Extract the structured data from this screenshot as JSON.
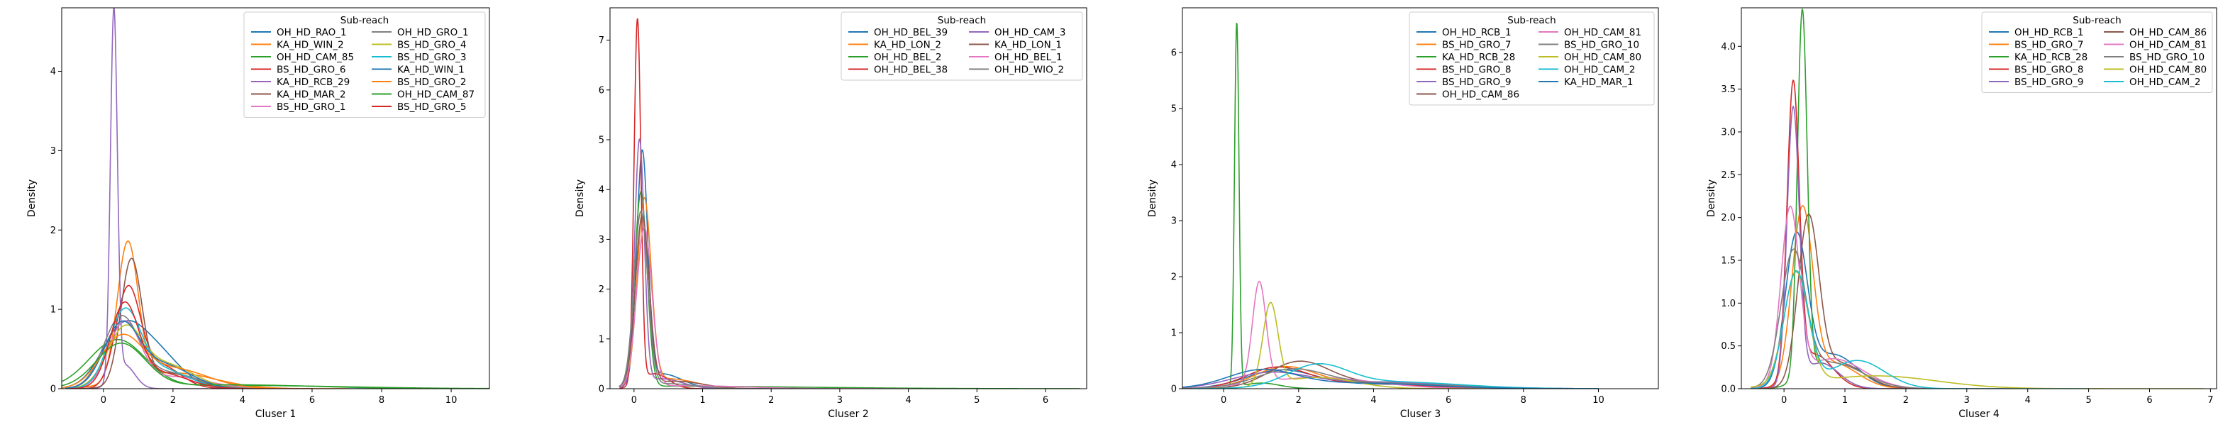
{
  "chart_data": [
    {
      "type": "line",
      "subtype": "kde",
      "xlabel": "Cluser 1",
      "ylabel": "Density",
      "xlim": [
        -1.2,
        11.1
      ],
      "ylim": [
        0,
        4.8
      ],
      "xticks": [
        0,
        2,
        4,
        6,
        8,
        10
      ],
      "yticks": [
        0,
        1,
        2,
        3,
        4
      ],
      "legend": {
        "title": "Sub-reach",
        "position": "top-right",
        "ncol": 2
      },
      "series": [
        {
          "name": "OH_HD_RAO_1",
          "color": "#1f77b4",
          "peak_x": 0.5,
          "peak_y": 0.66,
          "spread": 0.6,
          "tail_x": 1.5,
          "tail_y": 0.45,
          "tail_spread": 0.7,
          "x_max": 8.0
        },
        {
          "name": "KA_HD_WIN_2",
          "color": "#ff7f0e",
          "peak_x": 0.7,
          "peak_y": 1.75,
          "spread": 0.3,
          "tail_x": 2.0,
          "tail_y": 0.2,
          "tail_spread": 1.2,
          "x_max": 7.0
        },
        {
          "name": "OH_HD_CAM_85",
          "color": "#2ca02c",
          "peak_x": 0.4,
          "peak_y": 0.6,
          "spread": 0.8,
          "tail_x": 4.0,
          "tail_y": 0.04,
          "tail_spread": 3.0,
          "x_max": 11.0
        },
        {
          "name": "BS_HD_GRO_6",
          "color": "#d62728",
          "peak_x": 0.7,
          "peak_y": 1.2,
          "spread": 0.35,
          "tail_x": 1.6,
          "tail_y": 0.3,
          "tail_spread": 0.6,
          "x_max": 6.0
        },
        {
          "name": "KA_HD_RCB_29",
          "color": "#9467bd",
          "peak_x": 0.3,
          "peak_y": 4.62,
          "spread": 0.1,
          "tail_x": 0.6,
          "tail_y": 0.3,
          "tail_spread": 0.3,
          "x_max": 3.0
        },
        {
          "name": "KA_HD_MAR_2",
          "color": "#8c564b",
          "peak_x": 0.8,
          "peak_y": 1.55,
          "spread": 0.3,
          "tail_x": 1.8,
          "tail_y": 0.2,
          "tail_spread": 0.8,
          "x_max": 6.0
        },
        {
          "name": "BS_HD_GRO_1",
          "color": "#e377c2",
          "peak_x": 0.6,
          "peak_y": 0.8,
          "spread": 0.45,
          "tail_x": 2.0,
          "tail_y": 0.15,
          "tail_spread": 1.0,
          "x_max": 7.0
        },
        {
          "name": "OH_HD_GRO_1",
          "color": "#7f7f7f",
          "peak_x": 0.5,
          "peak_y": 0.85,
          "spread": 0.5,
          "tail_x": 1.8,
          "tail_y": 0.2,
          "tail_spread": 0.9,
          "x_max": 6.0
        },
        {
          "name": "BS_HD_GRO_4",
          "color": "#bcbd22",
          "peak_x": 0.6,
          "peak_y": 0.7,
          "spread": 0.5,
          "tail_x": 1.8,
          "tail_y": 0.3,
          "tail_spread": 0.8,
          "x_max": 6.0
        },
        {
          "name": "BS_HD_GRO_3",
          "color": "#17becf",
          "peak_x": 0.6,
          "peak_y": 0.9,
          "spread": 0.45,
          "tail_x": 1.6,
          "tail_y": 0.25,
          "tail_spread": 0.8,
          "x_max": 6.0
        },
        {
          "name": "KA_HD_WIN_1",
          "color": "#1f77b4",
          "peak_x": 0.5,
          "peak_y": 0.75,
          "spread": 0.5,
          "tail_x": 1.7,
          "tail_y": 0.3,
          "tail_spread": 0.8,
          "x_max": 6.0
        },
        {
          "name": "BS_HD_GRO_2",
          "color": "#ff7f0e",
          "peak_x": 0.5,
          "peak_y": 0.6,
          "spread": 0.6,
          "tail_x": 2.0,
          "tail_y": 0.25,
          "tail_spread": 1.0,
          "x_max": 7.0
        },
        {
          "name": "OH_HD_CAM_87",
          "color": "#2ca02c",
          "peak_x": 0.5,
          "peak_y": 0.55,
          "spread": 0.7,
          "tail_x": 3.5,
          "tail_y": 0.05,
          "tail_spread": 2.5,
          "x_max": 10.0
        },
        {
          "name": "BS_HD_GRO_5",
          "color": "#d62728",
          "peak_x": 0.6,
          "peak_y": 1.0,
          "spread": 0.4,
          "tail_x": 1.6,
          "tail_y": 0.2,
          "tail_spread": 0.8,
          "x_max": 6.0
        }
      ]
    },
    {
      "type": "line",
      "subtype": "kde",
      "xlabel": "Cluser 2",
      "ylabel": "Density",
      "xlim": [
        -0.35,
        6.6
      ],
      "ylim": [
        0,
        7.65
      ],
      "xticks": [
        0,
        1,
        2,
        3,
        4,
        5,
        6
      ],
      "yticks": [
        0,
        1,
        2,
        3,
        4,
        5,
        6,
        7
      ],
      "legend": {
        "title": "Sub-reach",
        "position": "top-right",
        "ncol": 2
      },
      "series": [
        {
          "name": "OH_HD_BEL_39",
          "color": "#1f77b4",
          "peak_x": 0.12,
          "peak_y": 4.6,
          "spread": 0.08,
          "tail_x": 0.4,
          "tail_y": 0.3,
          "tail_spread": 0.3,
          "x_max": 3.0
        },
        {
          "name": "KA_HD_LON_2",
          "color": "#ff7f0e",
          "peak_x": 0.15,
          "peak_y": 3.7,
          "spread": 0.1,
          "tail_x": 0.5,
          "tail_y": 0.2,
          "tail_spread": 0.4,
          "x_max": 3.5
        },
        {
          "name": "OH_HD_BEL_2",
          "color": "#2ca02c",
          "peak_x": 0.1,
          "peak_y": 3.9,
          "spread": 0.09,
          "tail_x": 0.5,
          "tail_y": 0.05,
          "tail_spread": 2.0,
          "x_max": 6.3
        },
        {
          "name": "OH_HD_BEL_38",
          "color": "#d62728",
          "peak_x": 0.05,
          "peak_y": 7.3,
          "spread": 0.05,
          "tail_x": 0.3,
          "tail_y": 0.3,
          "tail_spread": 0.2,
          "x_max": 2.5
        },
        {
          "name": "OH_HD_CAM_3",
          "color": "#9467bd",
          "peak_x": 0.08,
          "peak_y": 4.9,
          "spread": 0.07,
          "tail_x": 0.4,
          "tail_y": 0.2,
          "tail_spread": 0.3,
          "x_max": 2.5
        },
        {
          "name": "KA_HD_LON_1",
          "color": "#8c564b",
          "peak_x": 0.12,
          "peak_y": 3.4,
          "spread": 0.1,
          "tail_x": 0.6,
          "tail_y": 0.15,
          "tail_spread": 0.4,
          "x_max": 3.0
        },
        {
          "name": "OH_HD_BEL_1",
          "color": "#e377c2",
          "peak_x": 0.15,
          "peak_y": 3.2,
          "spread": 0.11,
          "tail_x": 0.8,
          "tail_y": 0.06,
          "tail_spread": 0.8,
          "x_max": 4.0
        },
        {
          "name": "OH_HD_WIO_2",
          "color": "#7f7f7f",
          "peak_x": 0.1,
          "peak_y": 3.5,
          "spread": 0.1,
          "tail_x": 0.5,
          "tail_y": 0.1,
          "tail_spread": 0.4,
          "x_max": 3.0
        }
      ]
    },
    {
      "type": "line",
      "subtype": "kde",
      "xlabel": "Cluser 3",
      "ylabel": "Density",
      "xlim": [
        -1.1,
        11.6
      ],
      "ylim": [
        0,
        6.8
      ],
      "xticks": [
        0,
        2,
        4,
        6,
        8,
        10
      ],
      "yticks": [
        0,
        1,
        2,
        3,
        4,
        5,
        6
      ],
      "legend": {
        "title": "Sub-reach",
        "position": "top-right",
        "ncol": 2
      },
      "series": [
        {
          "name": "OH_HD_RCB_1",
          "color": "#1f77b4",
          "peak_x": 1.5,
          "peak_y": 0.3,
          "spread": 0.9,
          "tail_x": 4.0,
          "tail_y": 0.08,
          "tail_spread": 2.0,
          "x_max": 10.0
        },
        {
          "name": "BS_HD_GRO_7",
          "color": "#ff7f0e",
          "peak_x": 1.6,
          "peak_y": 0.35,
          "spread": 0.8,
          "tail_x": 3.5,
          "tail_y": 0.1,
          "tail_spread": 1.5,
          "x_max": 9.0
        },
        {
          "name": "KA_HD_RCB_28",
          "color": "#2ca02c",
          "peak_x": 0.35,
          "peak_y": 6.5,
          "spread": 0.06,
          "tail_x": 1.0,
          "tail_y": 0.1,
          "tail_spread": 0.5,
          "x_max": 4.0
        },
        {
          "name": "BS_HD_GRO_8",
          "color": "#d62728",
          "peak_x": 1.4,
          "peak_y": 0.35,
          "spread": 0.8,
          "tail_x": 3.5,
          "tail_y": 0.1,
          "tail_spread": 1.5,
          "x_max": 9.0
        },
        {
          "name": "BS_HD_GRO_9",
          "color": "#9467bd",
          "peak_x": 1.2,
          "peak_y": 0.25,
          "spread": 1.0,
          "tail_x": 4.0,
          "tail_y": 0.12,
          "tail_spread": 2.0,
          "x_max": 10.0
        },
        {
          "name": "OH_HD_CAM_86",
          "color": "#8c564b",
          "peak_x": 2.0,
          "peak_y": 0.45,
          "spread": 0.8,
          "tail_x": 4.0,
          "tail_y": 0.1,
          "tail_spread": 1.5,
          "x_max": 9.0
        },
        {
          "name": "OH_HD_CAM_81",
          "color": "#e377c2",
          "peak_x": 0.95,
          "peak_y": 1.8,
          "spread": 0.18,
          "tail_x": 2.5,
          "tail_y": 0.2,
          "tail_spread": 1.5,
          "x_max": 9.0
        },
        {
          "name": "BS_HD_GRO_10",
          "color": "#7f7f7f",
          "peak_x": 1.8,
          "peak_y": 0.3,
          "spread": 0.9,
          "tail_x": 4.0,
          "tail_y": 0.1,
          "tail_spread": 2.0,
          "x_max": 10.0
        },
        {
          "name": "OH_HD_CAM_80",
          "color": "#bcbd22",
          "peak_x": 1.25,
          "peak_y": 1.45,
          "spread": 0.2,
          "tail_x": 2.5,
          "tail_y": 0.2,
          "tail_spread": 1.0,
          "x_max": 8.0
        },
        {
          "name": "OH_HD_CAM_2",
          "color": "#17becf",
          "peak_x": 2.5,
          "peak_y": 0.38,
          "spread": 0.8,
          "tail_x": 4.5,
          "tail_y": 0.12,
          "tail_spread": 1.8,
          "x_max": 10.0
        },
        {
          "name": "KA_HD_MAR_1",
          "color": "#1f77b4",
          "peak_x": 1.0,
          "peak_y": 0.3,
          "spread": 0.9,
          "tail_x": 3.5,
          "tail_y": 0.1,
          "tail_spread": 2.0,
          "x_max": 10.0
        }
      ]
    },
    {
      "type": "line",
      "subtype": "kde",
      "xlabel": "Cluser 4",
      "ylabel": "Density",
      "xlim": [
        -0.7,
        7.1
      ],
      "ylim": [
        0,
        4.45
      ],
      "xticks": [
        0,
        1,
        2,
        3,
        4,
        5,
        6,
        7
      ],
      "yticks": [
        0.0,
        0.5,
        1.0,
        1.5,
        2.0,
        2.5,
        3.0,
        3.5,
        4.0
      ],
      "legend": {
        "title": "Sub-reach",
        "position": "top-right",
        "ncol": 2
      },
      "series": [
        {
          "name": "OH_HD_RCB_1",
          "color": "#1f77b4",
          "peak_x": 0.2,
          "peak_y": 1.7,
          "spread": 0.18,
          "tail_x": 0.8,
          "tail_y": 0.4,
          "tail_spread": 0.4,
          "x_max": 4.0
        },
        {
          "name": "BS_HD_GRO_7",
          "color": "#ff7f0e",
          "peak_x": 0.3,
          "peak_y": 2.0,
          "spread": 0.17,
          "tail_x": 0.8,
          "tail_y": 0.3,
          "tail_spread": 0.4,
          "x_max": 4.0
        },
        {
          "name": "KA_HD_RCB_28",
          "color": "#2ca02c",
          "peak_x": 0.3,
          "peak_y": 4.25,
          "spread": 0.08,
          "tail_x": 0.6,
          "tail_y": 0.3,
          "tail_spread": 0.3,
          "x_max": 3.0
        },
        {
          "name": "BS_HD_GRO_8",
          "color": "#d62728",
          "peak_x": 0.15,
          "peak_y": 3.4,
          "spread": 0.1,
          "tail_x": 0.5,
          "tail_y": 0.4,
          "tail_spread": 0.3,
          "x_max": 3.0
        },
        {
          "name": "BS_HD_GRO_9",
          "color": "#9467bd",
          "peak_x": 0.15,
          "peak_y": 3.2,
          "spread": 0.1,
          "tail_x": 0.6,
          "tail_y": 0.3,
          "tail_spread": 0.3,
          "x_max": 3.0
        },
        {
          "name": "OH_HD_CAM_86",
          "color": "#8c564b",
          "peak_x": 0.4,
          "peak_y": 1.9,
          "spread": 0.17,
          "tail_x": 0.9,
          "tail_y": 0.3,
          "tail_spread": 0.4,
          "x_max": 4.0
        },
        {
          "name": "OH_HD_CAM_81",
          "color": "#e377c2",
          "peak_x": 0.1,
          "peak_y": 2.0,
          "spread": 0.15,
          "tail_x": 0.8,
          "tail_y": 0.35,
          "tail_spread": 0.5,
          "x_max": 4.0
        },
        {
          "name": "BS_HD_GRO_10",
          "color": "#7f7f7f",
          "peak_x": 0.15,
          "peak_y": 1.5,
          "spread": 0.2,
          "tail_x": 0.8,
          "tail_y": 0.3,
          "tail_spread": 0.5,
          "x_max": 4.0
        },
        {
          "name": "OH_HD_CAM_80",
          "color": "#bcbd22",
          "peak_x": 0.2,
          "peak_y": 1.3,
          "spread": 0.2,
          "tail_x": 1.5,
          "tail_y": 0.15,
          "tail_spread": 1.0,
          "x_max": 6.9
        },
        {
          "name": "OH_HD_CAM_2",
          "color": "#17becf",
          "peak_x": 0.2,
          "peak_y": 1.35,
          "spread": 0.2,
          "tail_x": 1.2,
          "tail_y": 0.33,
          "tail_spread": 0.45,
          "x_max": 5.0
        }
      ]
    }
  ]
}
